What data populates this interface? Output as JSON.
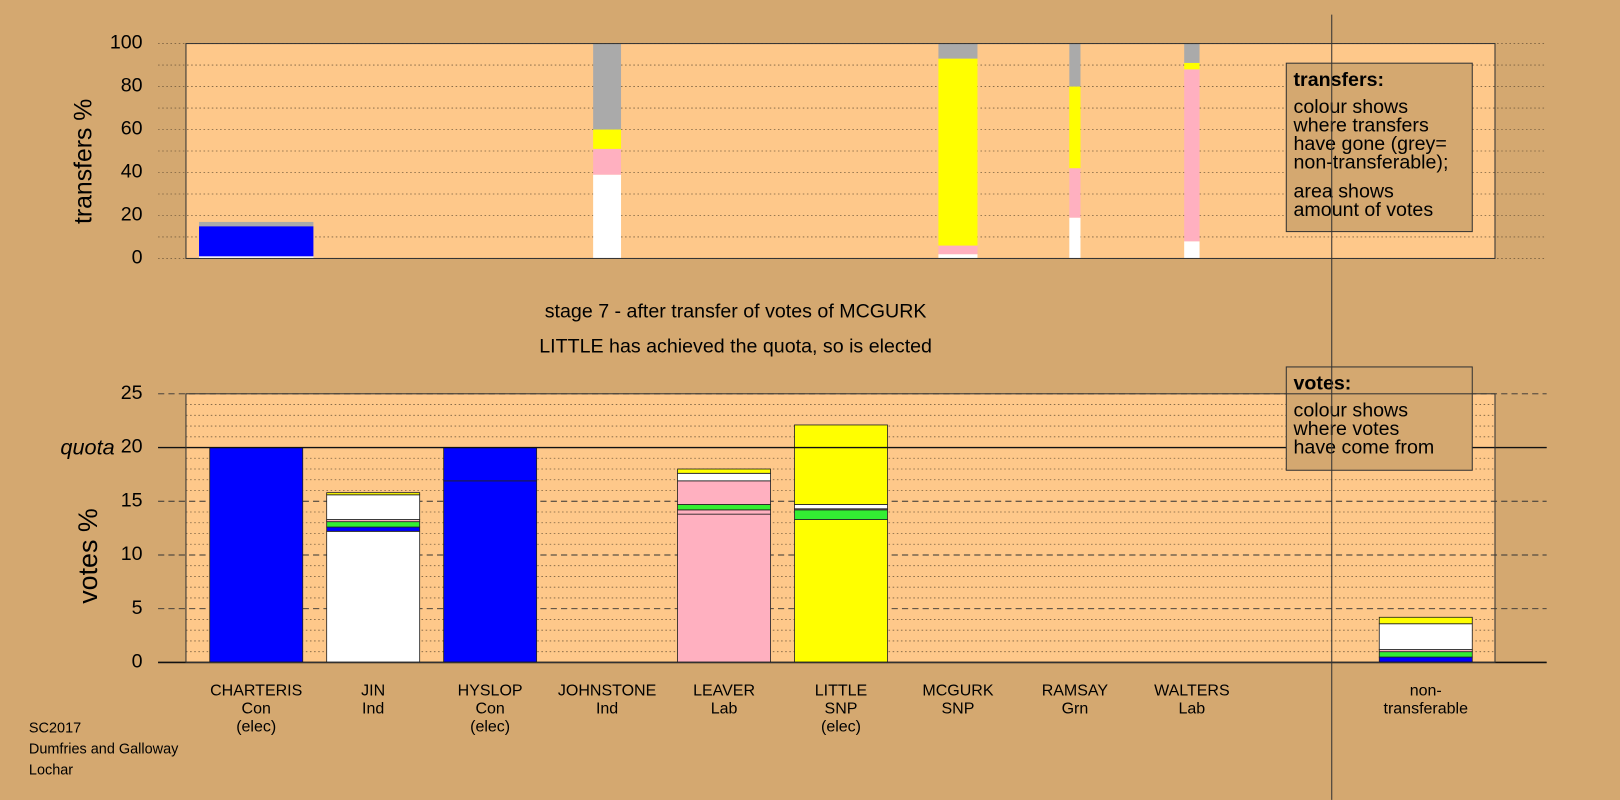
{
  "chart_data": [
    {
      "type": "transfer-bar",
      "ylabel": "transfers %",
      "ylim": [
        0,
        100
      ],
      "yticks": [
        0,
        20,
        40,
        60,
        80,
        100
      ],
      "minor_yticks": [
        10,
        30,
        50,
        70,
        90
      ],
      "transfer_amounts": [
        4.1,
        null,
        null,
        1,
        null,
        null,
        1.4,
        0.4,
        0.55,
        null,
        null
      ],
      "series": [
        {
          "color": "#ffffff",
          "values": [
            1,
            null,
            null,
            39,
            null,
            null,
            2,
            19,
            8,
            null,
            null
          ]
        },
        {
          "color": "#0000ff",
          "values": [
            14,
            null,
            null,
            0,
            null,
            null,
            0,
            0,
            0,
            null,
            null
          ]
        },
        {
          "color": "#ffb0c0",
          "values": [
            0,
            null,
            null,
            12,
            null,
            null,
            4,
            23,
            80,
            null,
            null
          ]
        },
        {
          "color": "#ffff00",
          "values": [
            0,
            null,
            null,
            9,
            null,
            null,
            87,
            38,
            3,
            null,
            null
          ]
        },
        {
          "color": "#aaaaaa",
          "values": [
            2,
            null,
            null,
            40,
            null,
            null,
            7,
            20,
            9,
            null,
            null
          ]
        }
      ],
      "legend_box": {
        "heading": "transfers:",
        "lines": [
          "colour shows",
          "where transfers",
          "have gone (grey=",
          "non-transferable);",
          "area shows",
          "amount of votes"
        ]
      }
    },
    {
      "type": "stacked-bar",
      "title": "stage 7 - after transfer of votes of MCGURK",
      "subtitle": "LITTLE has achieved the quota, so is elected",
      "ylabel": "votes %",
      "ylim": [
        0,
        25
      ],
      "yticks": [
        0,
        5,
        10,
        15,
        20,
        25
      ],
      "minor_yticks": [
        1,
        2,
        3,
        4,
        6,
        7,
        8,
        9,
        11,
        12,
        13,
        14,
        16,
        17,
        18,
        19,
        21,
        22,
        23,
        24
      ],
      "quota": {
        "value": 20,
        "label": "quota"
      },
      "categories": [
        [
          "CHARTERIS",
          "Con",
          "(elec)"
        ],
        [
          "JIN",
          "Ind"
        ],
        [
          "HYSLOP",
          "Con",
          "(elec)"
        ],
        [
          "JOHNSTONE",
          "Ind"
        ],
        [
          "LEAVER",
          "Lab"
        ],
        [
          "LITTLE",
          "SNP",
          "(elec)"
        ],
        [
          "MCGURK",
          "SNP"
        ],
        [
          "RAMSAY",
          "Grn"
        ],
        [
          "WALTERS",
          "Lab"
        ],
        null,
        [
          "non-",
          "transferable"
        ]
      ],
      "stacks": [
        {
          "values": [
            20
          ],
          "colors": [
            "#0000ff"
          ]
        },
        {
          "values": [
            12.2,
            0.4,
            0.5,
            0.2,
            2.3,
            0.2
          ],
          "colors": [
            "#ffffff",
            "#0000ff",
            "#33ee33",
            "#ffb0c0",
            "#ffffff",
            "#ffff00"
          ]
        },
        {
          "values": [
            16.9,
            3.1
          ],
          "colors": [
            "#0000ff",
            "#0000ff"
          ]
        },
        {
          "values": [],
          "colors": []
        },
        {
          "values": [
            13.8,
            0.4,
            0.5,
            2.2,
            0.7,
            0.4
          ],
          "colors": [
            "#ffb0c0",
            "#ffb0c0",
            "#33ee33",
            "#ffb0c0",
            "#ffffff",
            "#ffff00"
          ]
        },
        {
          "values": [
            13.3,
            0.9,
            0.1,
            0.4,
            7.4
          ],
          "colors": [
            "#ffff00",
            "#33ee33",
            "#ffb0c0",
            "#ffffff",
            "#ffff00"
          ]
        },
        {
          "values": [],
          "colors": []
        },
        {
          "values": [],
          "colors": []
        },
        {
          "values": [],
          "colors": []
        },
        {
          "values": [],
          "colors": []
        },
        {
          "values": [
            0.5,
            0.5,
            0.2,
            2.4,
            0.6
          ],
          "colors": [
            "#0000ff",
            "#33ee33",
            "#ffb0c0",
            "#ffffff",
            "#ffff00"
          ]
        }
      ],
      "legend_box": {
        "heading": "votes:",
        "lines": [
          "colour shows",
          "where votes",
          "have come from"
        ]
      }
    }
  ],
  "footer": [
    "SC2017",
    "Dumfries and Galloway",
    "Lochar"
  ]
}
